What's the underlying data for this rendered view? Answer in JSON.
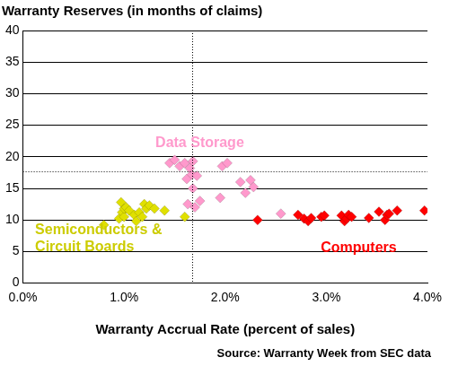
{
  "chart_data": {
    "type": "scatter",
    "title": "Warranty Reserves (in months of claims)",
    "x_label": "Warranty Accrual Rate (percent of sales)",
    "source": "Source: Warranty Week from SEC data",
    "xlim": [
      0,
      4
    ],
    "xticks": [
      {
        "value": 0,
        "label": "0.0%"
      },
      {
        "value": 1,
        "label": "1.0%"
      },
      {
        "value": 2,
        "label": "2.0%"
      },
      {
        "value": 3,
        "label": "3.0%"
      },
      {
        "value": 4,
        "label": "4.0%"
      }
    ],
    "ylim": [
      0,
      40
    ],
    "yticks": [
      0,
      5,
      10,
      15,
      20,
      25,
      30,
      35,
      40
    ],
    "grid": "y",
    "marker": "diamond",
    "vlines": [
      1.67
    ],
    "hlines": [
      17.7
    ],
    "series": [
      {
        "name": "Semiconductors & Circuit Boards",
        "color": "#e0e000",
        "x": [
          0.8,
          0.95,
          0.97,
          0.98,
          1.0,
          1.0,
          1.02,
          1.05,
          1.1,
          1.12,
          1.15,
          1.18,
          1.2,
          1.22,
          1.25,
          1.3,
          1.4,
          1.6
        ],
        "values": [
          9.2,
          10.2,
          12.8,
          11.2,
          10.5,
          11.8,
          12,
          11.5,
          10.8,
          9.8,
          11.2,
          10.5,
          12.5,
          11.8,
          12.3,
          11.8,
          11.5,
          10.5
        ]
      },
      {
        "name": "Data Storage",
        "color": "#ff99cc",
        "x": [
          1.45,
          1.5,
          1.55,
          1.6,
          1.62,
          1.63,
          1.65,
          1.67,
          1.68,
          1.68,
          1.7,
          1.72,
          1.75,
          1.95,
          1.97,
          2.02,
          2.15,
          2.2,
          2.25,
          2.28,
          2.55
        ],
        "values": [
          19,
          19.5,
          18.5,
          19,
          16.5,
          12.5,
          18.2,
          17.2,
          19.3,
          15,
          12,
          17,
          13,
          13.5,
          18.5,
          19,
          16,
          14.3,
          16.3,
          15.2,
          11
        ]
      },
      {
        "name": "Computers",
        "color": "#ff0000",
        "x": [
          2.32,
          2.72,
          2.78,
          2.82,
          2.85,
          2.95,
          2.98,
          3.15,
          3.18,
          3.2,
          3.22,
          3.25,
          3.42,
          3.52,
          3.58,
          3.6,
          3.62,
          3.7,
          3.97
        ],
        "values": [
          10,
          10.8,
          10.2,
          9.8,
          10.3,
          10.5,
          10.7,
          10.7,
          9.8,
          10.2,
          10.8,
          10.5,
          10.3,
          11.3,
          10,
          10.8,
          11,
          11.5,
          11.5
        ]
      }
    ]
  }
}
